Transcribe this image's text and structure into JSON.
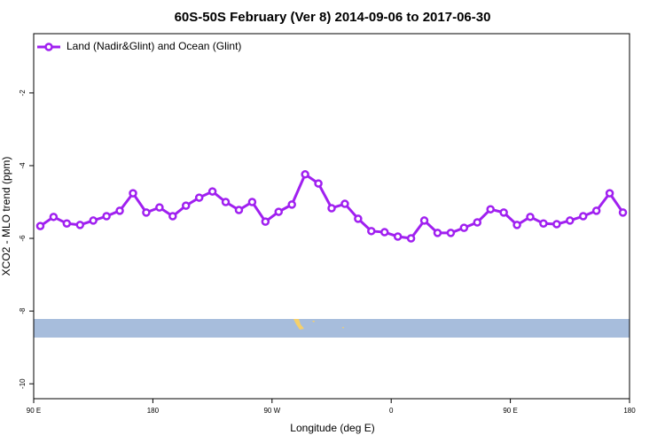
{
  "chart_data": {
    "type": "line",
    "title": "60S-50S February (Ver 8)   2014-09-06 to 2017-06-30",
    "xlabel": "Longitude (deg E)",
    "ylabel": "XCO2 - MLO trend (ppm)",
    "x": [
      95,
      105,
      115,
      125,
      135,
      145,
      155,
      165,
      175,
      185,
      195,
      205,
      215,
      225,
      235,
      245,
      255,
      265,
      275,
      285,
      295,
      305,
      315,
      325,
      335,
      345,
      355,
      365,
      375,
      385,
      395,
      405,
      415,
      425,
      435,
      445,
      455,
      465,
      475,
      485,
      495,
      505,
      515,
      525,
      535
    ],
    "series": [
      {
        "name": "Land (Nadir&Glint) and Ocean (Glint)",
        "color": "#a020f0",
        "values": [
          -5.66,
          -5.41,
          -5.59,
          -5.63,
          -5.51,
          -5.39,
          -5.24,
          -4.76,
          -5.29,
          -5.15,
          -5.39,
          -5.1,
          -4.88,
          -4.71,
          -5.0,
          -5.22,
          -5.0,
          -5.54,
          -5.27,
          -5.07,
          -4.24,
          -4.49,
          -5.17,
          -5.05,
          -5.46,
          -5.8,
          -5.83,
          -5.95,
          -6.0,
          -5.51,
          -5.85,
          -5.85,
          -5.71,
          -5.56,
          -5.2,
          -5.29,
          -5.63,
          -5.41,
          -5.59,
          -5.61,
          -5.51,
          -5.39,
          -5.24,
          -4.76,
          -5.29
        ]
      }
    ],
    "xlim": [
      90,
      540
    ],
    "xticks": [
      {
        "value": 90,
        "label": "90 E"
      },
      {
        "value": 180,
        "label": "180"
      },
      {
        "value": 270,
        "label": "90 W"
      },
      {
        "value": 360,
        "label": "0"
      },
      {
        "value": 450,
        "label": "90 E"
      },
      {
        "value": 540,
        "label": "180"
      }
    ],
    "ylim": [
      -10.41,
      -0.37
    ],
    "yticks": [
      -2,
      -4,
      -6,
      -8,
      -10
    ],
    "legend": "top-left"
  }
}
